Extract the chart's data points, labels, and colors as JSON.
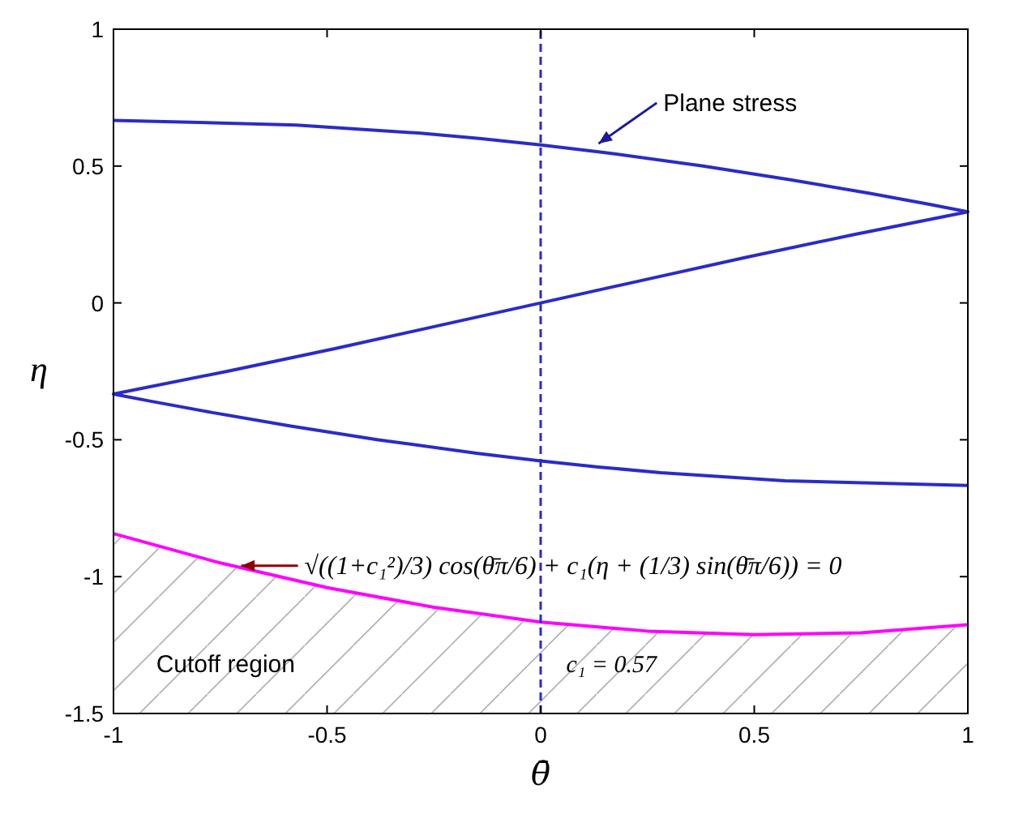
{
  "chart_data": {
    "type": "line",
    "xlabel": "θ̄",
    "ylabel": "η",
    "xlim": [
      -1,
      1
    ],
    "ylim": [
      -1.5,
      1
    ],
    "xticks": [
      -1,
      -0.5,
      0,
      0.5,
      1
    ],
    "yticks": [
      -1.5,
      -1,
      -0.5,
      0,
      0.5,
      1
    ],
    "grid": false,
    "marker": "none",
    "series": [
      {
        "color": "#2b2bc8",
        "x": [
          -1,
          -0.572,
          -0.281,
          -0.139,
          0,
          0.147,
          0.38,
          0.585,
          0.771,
          0.91,
          1,
          0.734,
          0.482,
          0.239,
          0,
          -0.239,
          -0.482,
          -0.734,
          -1,
          -0.91,
          -0.771,
          -0.585,
          -0.38,
          -0.147,
          0,
          0.139,
          0.281,
          0.572,
          1
        ],
        "values": [
          0.667,
          0.65,
          0.62,
          0.6,
          0.577,
          0.55,
          0.5,
          0.45,
          0.4,
          0.36,
          0.333,
          0.25,
          0.167,
          0.083,
          0,
          -0.083,
          -0.167,
          -0.25,
          -0.333,
          -0.36,
          -0.4,
          -0.45,
          -0.5,
          -0.55,
          -0.577,
          -0.6,
          -0.62,
          -0.65,
          -0.667
        ]
      },
      {
        "color": "#ff00ff",
        "x": [
          -1,
          -0.75,
          -0.5,
          -0.25,
          0,
          0.25,
          0.5,
          0.75,
          1
        ],
        "values": [
          -0.843,
          -0.95,
          -1.04,
          -1.112,
          -1.166,
          -1.199,
          -1.212,
          -1.205,
          -1.176
        ]
      }
    ],
    "ref_lines": [
      {
        "axis": "x",
        "value": 0,
        "color": "#2b2bc8",
        "line_style": "dashed"
      }
    ],
    "annotations": [
      {
        "text": "Plane stress",
        "x": 0.12,
        "y": 0.565
      },
      {
        "text": "√((1+c₁²)/3) cos(θ̄π/6) + c₁(η + (1/3) sin(θ̄π/6)) = 0",
        "x": -0.72,
        "y": -0.96
      },
      "Cutoff region",
      "c₁ = 0.57"
    ]
  }
}
